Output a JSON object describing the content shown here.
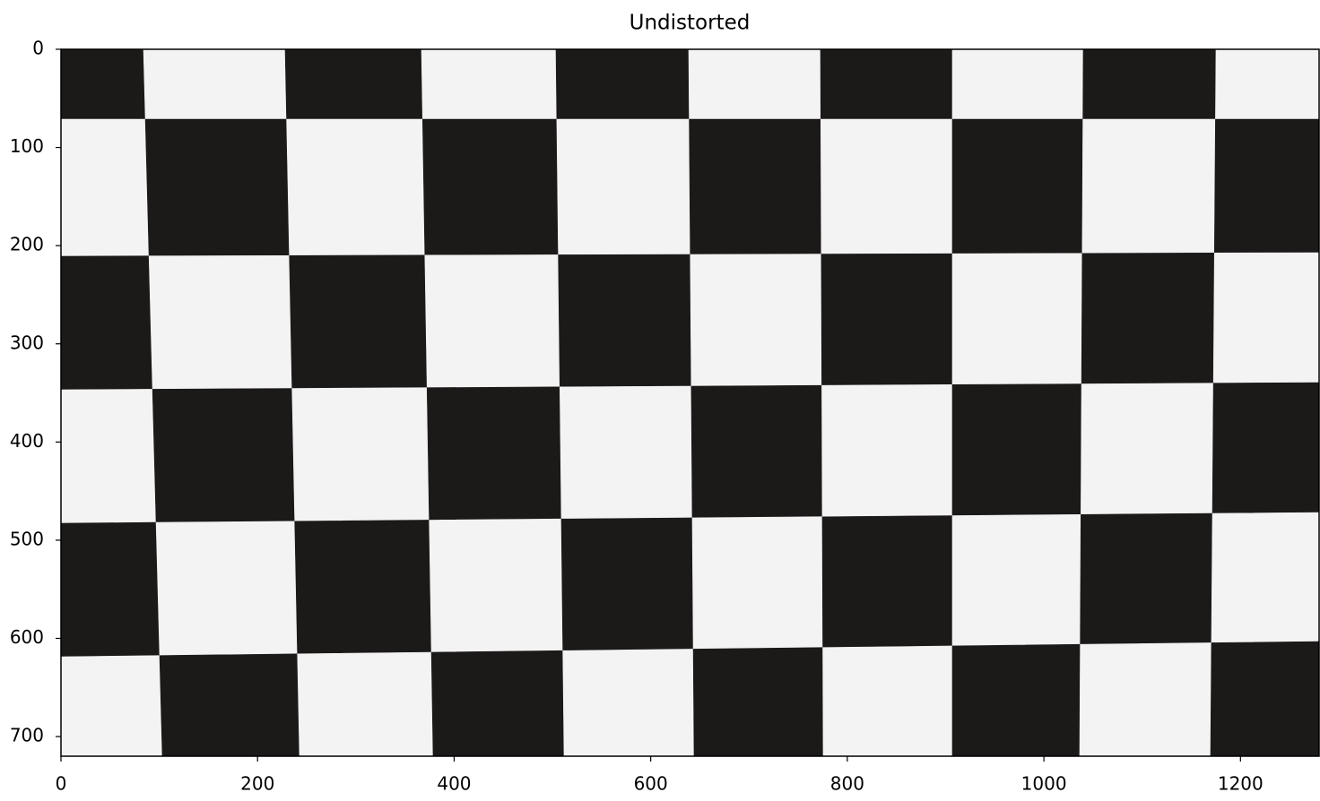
{
  "chart_data": {
    "type": "image",
    "title": "Undistorted",
    "xlim": [
      0,
      1280
    ],
    "xticks": [
      0,
      200,
      400,
      600,
      800,
      1000,
      1200
    ],
    "ylim": [
      720,
      0
    ],
    "yticks": [
      0,
      100,
      200,
      300,
      400,
      500,
      600,
      700
    ]
  }
}
